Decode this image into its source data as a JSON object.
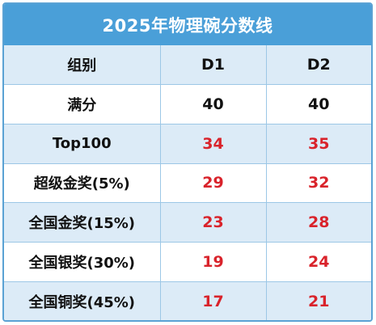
{
  "title": "2025年物理碗分数线",
  "header": {
    "group": "组别",
    "col1": "D1",
    "col2": "D2"
  },
  "rows": [
    {
      "label": "满分",
      "d1": "40",
      "d2": "40",
      "highlight": false
    },
    {
      "label": "Top100",
      "d1": "34",
      "d2": "35",
      "highlight": true
    },
    {
      "label": "超级金奖(5%)",
      "d1": "29",
      "d2": "32",
      "highlight": true
    },
    {
      "label": "全国金奖(15%)",
      "d1": "23",
      "d2": "28",
      "highlight": true
    },
    {
      "label": "全国银奖(30%)",
      "d1": "19",
      "d2": "24",
      "highlight": true
    },
    {
      "label": "全国铜奖(45%)",
      "d1": "17",
      "d2": "21",
      "highlight": true
    }
  ],
  "colors": {
    "title_bg": "#4a9fd8",
    "shade_row": "#dcebf7",
    "highlight_text": "#d9232b",
    "grid": "#9cc7e6"
  }
}
